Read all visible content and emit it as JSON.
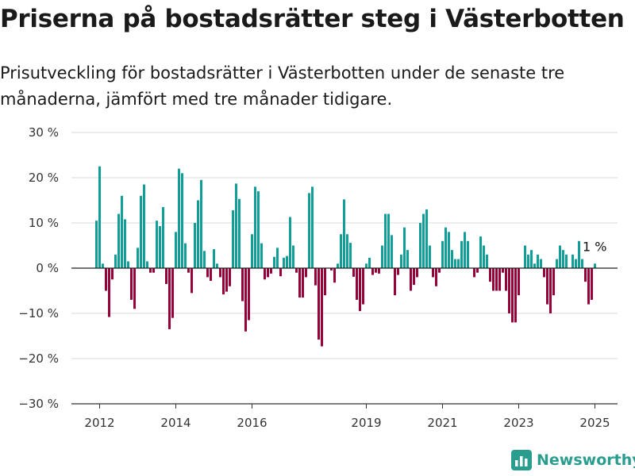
{
  "title": "Priserna på bostadsrätter steg i Västerbotten",
  "subtitle": "Prisutveckling för bostadsrätter i Västerbotten under de senaste tre månaderna, jämfört med tre månader tidigare.",
  "brand": "Newsworthy",
  "colors": {
    "positive": "#0f9e98",
    "negative": "#98003a",
    "grid": "#d9d9d9",
    "brand": "#2a9d8f"
  },
  "chart_data": {
    "type": "bar",
    "title": "Priserna på bostadsrätter steg i Västerbotten",
    "ylim": [
      -30,
      30
    ],
    "yticks": [
      30,
      20,
      10,
      0,
      -10,
      -20,
      -30
    ],
    "ytick_labels": [
      "30 %",
      "20 %",
      "10 %",
      "0 %",
      "−10 %",
      "−20 %",
      "−30 %"
    ],
    "xticks": [
      {
        "label": "2012",
        "index": 1
      },
      {
        "label": "2014",
        "index": 25
      },
      {
        "label": "2016",
        "index": 49
      },
      {
        "label": "2019",
        "index": 85
      },
      {
        "label": "2021",
        "index": 109
      },
      {
        "label": "2023",
        "index": 133
      },
      {
        "label": "2025",
        "index": 157
      }
    ],
    "annotation": {
      "label": "1 %",
      "index": 157
    },
    "grid": true,
    "values": [
      10.5,
      22.5,
      1.0,
      -5.0,
      -10.8,
      -2.5,
      3.0,
      12.0,
      16.0,
      10.8,
      1.5,
      -7.0,
      -9.0,
      4.5,
      16.0,
      18.5,
      1.5,
      -1.0,
      -1.0,
      10.5,
      9.3,
      13.5,
      -3.5,
      -13.5,
      -11.0,
      8.0,
      22.0,
      21.0,
      5.5,
      -1.0,
      -5.5,
      10.0,
      15.0,
      19.5,
      3.8,
      -2.0,
      -2.8,
      4.2,
      1.0,
      -2.0,
      -5.8,
      -5.2,
      -4.0,
      12.8,
      18.7,
      15.3,
      -7.3,
      -14.0,
      -11.5,
      7.5,
      18.0,
      17.0,
      5.5,
      -2.5,
      -2.0,
      -1.2,
      2.5,
      4.5,
      -1.8,
      2.3,
      2.7,
      11.3,
      5.0,
      -1.0,
      -6.5,
      -6.5,
      -2.0,
      16.6,
      18.0,
      -3.8,
      -15.8,
      -17.3,
      -6.0,
      0.0,
      -0.5,
      -3.2,
      1.0,
      7.5,
      15.2,
      7.5,
      5.6,
      -1.9,
      -7.0,
      -9.5,
      -8.0,
      1.0,
      2.3,
      -1.5,
      -1.0,
      -1.2,
      5.0,
      12.0,
      12.0,
      7.3,
      -6.0,
      -1.5,
      3.0,
      9.0,
      4.0,
      -5.0,
      -3.7,
      -2.0,
      10.0,
      12.0,
      13.0,
      5.0,
      -2.0,
      -4.0,
      -1.0,
      6.0,
      9.0,
      8.0,
      4.0,
      2.0,
      2.0,
      6.0,
      8.0,
      6.0,
      0.0,
      -2.0,
      -1.0,
      7.0,
      5.0,
      3.0,
      -3.0,
      -5.0,
      -5.0,
      -5.0,
      -1.0,
      -5.0,
      -10.0,
      -12.0,
      -12.0,
      -6.0,
      0.0,
      5.0,
      3.0,
      4.0,
      1.0,
      3.0,
      2.0,
      -2.0,
      -8.0,
      -10.0,
      -6.0,
      2.0,
      5.0,
      4.0,
      3.0,
      0.0,
      3.0,
      2.0,
      6.0,
      2.0,
      -3.0,
      -8.0,
      -7.0,
      1.0
    ]
  }
}
